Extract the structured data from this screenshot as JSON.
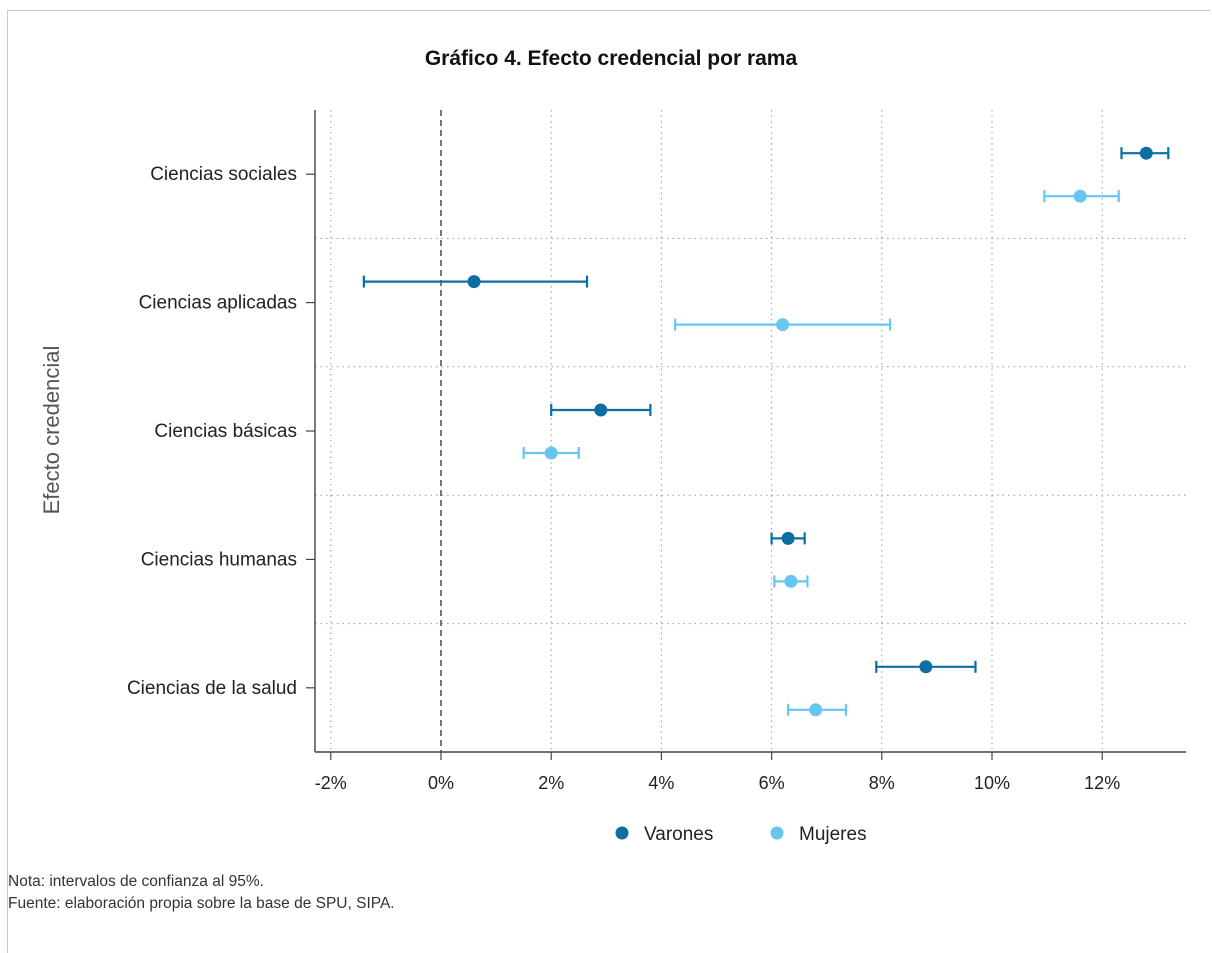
{
  "chart_data": {
    "type": "scatter",
    "subtype": "dot-and-whisker (coefficient plot with 95% CI)",
    "title": "Gráfico 4. Efecto credencial por rama",
    "ylabel": "Efecto credencial",
    "xlabel": "",
    "categories": [
      "Ciencias sociales",
      "Ciencias aplicadas",
      "Ciencias básicas",
      "Ciencias humanas",
      "Ciencias de la salud"
    ],
    "x_ticks": [
      -2,
      0,
      2,
      4,
      6,
      8,
      10,
      12
    ],
    "x_tick_labels": [
      "-2%",
      "0%",
      "2%",
      "4%",
      "6%",
      "8%",
      "10%",
      "12%"
    ],
    "xlim": [
      -2.3,
      13.5
    ],
    "reference_line": 0,
    "grid": true,
    "legend_position": "bottom",
    "series": [
      {
        "name": "Varones",
        "color": "#0b6fa4",
        "estimates": [
          12.8,
          0.6,
          2.9,
          6.3,
          8.8
        ],
        "ci_low": [
          12.35,
          -1.4,
          2.0,
          6.0,
          7.9
        ],
        "ci_high": [
          13.2,
          2.65,
          3.8,
          6.6,
          9.7
        ]
      },
      {
        "name": "Mujeres",
        "color": "#66c5f1",
        "estimates": [
          11.6,
          6.2,
          2.0,
          6.35,
          6.8
        ],
        "ci_low": [
          10.95,
          4.25,
          1.5,
          6.05,
          6.3
        ],
        "ci_high": [
          12.3,
          8.15,
          2.5,
          6.65,
          7.35
        ]
      }
    ]
  },
  "notes": {
    "nota": "Nota: intervalos de confianza al 95%.",
    "fuente": "Fuente: elaboración propia sobre la base de SPU, SIPA."
  }
}
